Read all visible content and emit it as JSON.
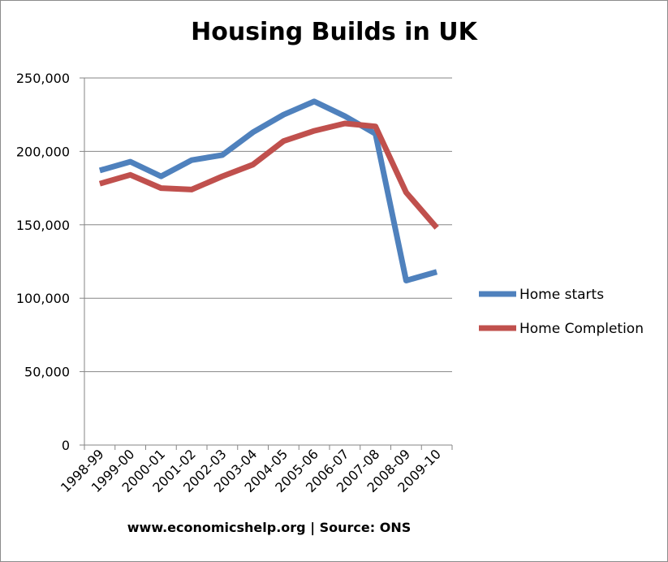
{
  "chart_data": {
    "type": "line",
    "title": "Housing Builds in UK",
    "footer": "www.economicshelp.org | Source: ONS",
    "xlabel": "",
    "ylabel": "",
    "categories": [
      "1998-99",
      "1999-00",
      "2000-01",
      "2001-02",
      "2002-03",
      "2003-04",
      "2004-05",
      "2005-06",
      "2006-07",
      "2007-08",
      "2008-09",
      "2009-10"
    ],
    "ylim": [
      0,
      250000
    ],
    "yticks": [
      0,
      50000,
      100000,
      150000,
      200000,
      250000
    ],
    "ytick_labels": [
      "0",
      "50,000",
      "100,000",
      "150,000",
      "200,000",
      "250,000"
    ],
    "grid": true,
    "legend_position": "right",
    "series": [
      {
        "name": "Home starts",
        "color": "#4f81bd",
        "values": [
          187000,
          193000,
          183000,
          194000,
          197500,
          213000,
          225000,
          234000,
          224000,
          212000,
          112000,
          118000
        ]
      },
      {
        "name": "Home Completion",
        "color": "#c0504d",
        "values": [
          178000,
          184000,
          175000,
          174000,
          183000,
          191000,
          207000,
          214000,
          219000,
          217000,
          172000,
          148000
        ]
      }
    ]
  }
}
